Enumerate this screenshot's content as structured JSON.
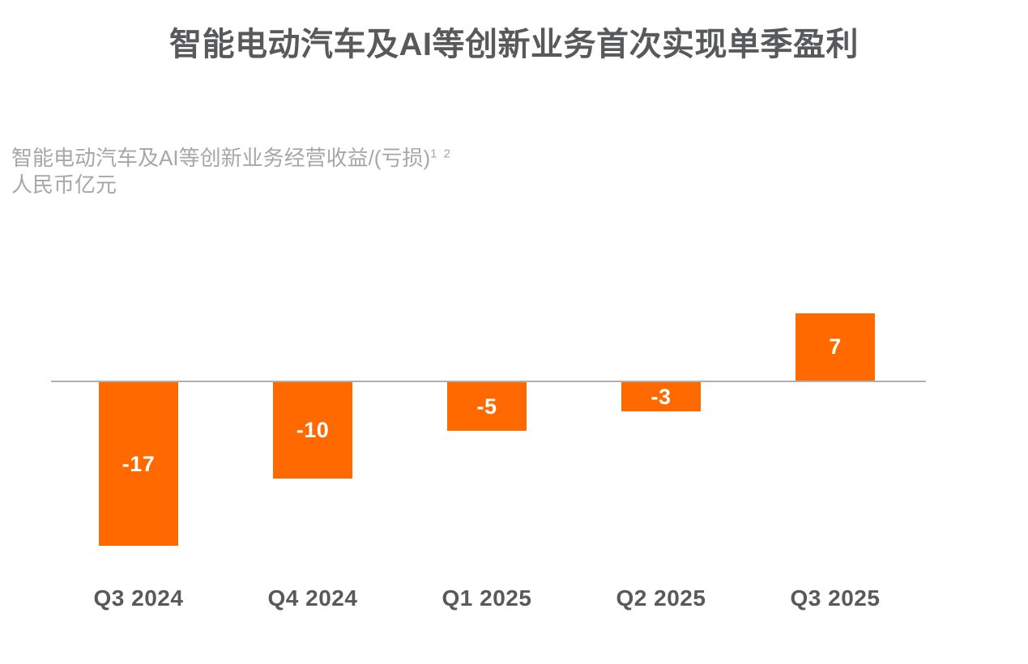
{
  "title": "智能电动汽车及AI等创新业务首次实现单季盈利",
  "subtitle": {
    "line1": "智能电动汽车及AI等创新业务经营收益/(亏损)",
    "superscript": "1 2",
    "line2": "人民币亿元"
  },
  "colors": {
    "bar": "#FF6900",
    "title_text": "#58595B",
    "subtitle_text": "#A7A7A8",
    "axis_line": "#AFAFAF",
    "bar_label_text": "#FFFFFF",
    "x_label_text": "#58595B",
    "background": "#FFFFFF"
  },
  "chart_data": {
    "type": "bar",
    "categories": [
      "Q3 2024",
      "Q4 2024",
      "Q1 2025",
      "Q2 2025",
      "Q3 2025"
    ],
    "values": [
      -17,
      -10,
      -5,
      -3,
      7
    ],
    "title": "智能电动汽车及AI等创新业务首次实现单季盈利",
    "series_label": "智能电动汽车及AI等创新业务经营收益/(亏损)",
    "footnote_markers": "1 2",
    "unit_label": "人民币亿元",
    "xlabel": "",
    "ylabel": "人民币亿元",
    "ylim": [
      -20,
      10
    ],
    "grid": false,
    "legend_position": "none",
    "value_labels_shown": true,
    "bar_color": "#FF6900"
  }
}
